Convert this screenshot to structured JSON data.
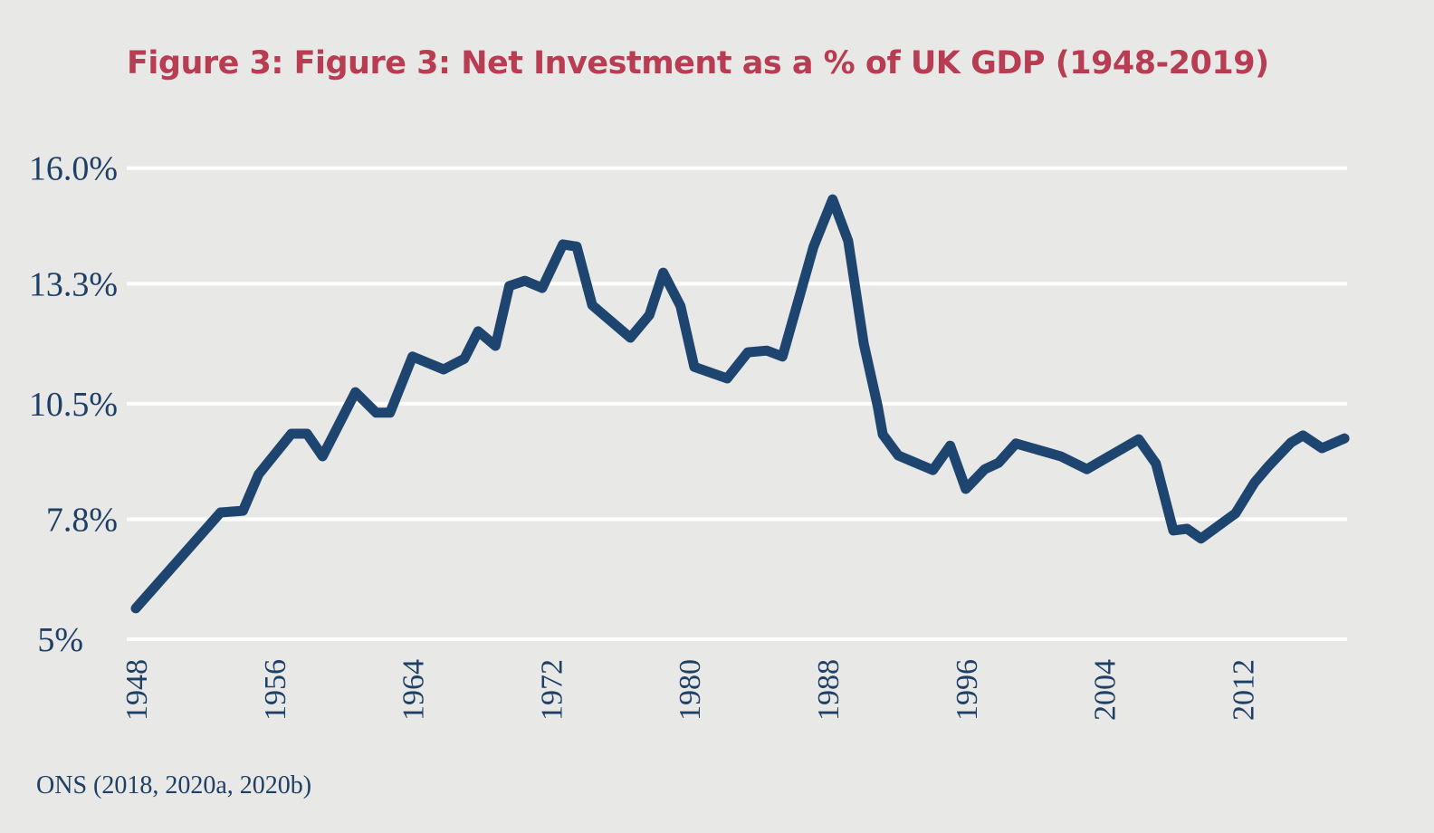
{
  "chart_data": {
    "type": "line",
    "title": "Figure 3: Figure 3: Net Investment as a % of UK GDP (1948-2019)",
    "xlabel": "",
    "ylabel": "",
    "ylim": [
      5,
      16.0
    ],
    "xlim": [
      1948,
      2018
    ],
    "grid": true,
    "y_ticks": [
      {
        "value": 16.0,
        "label": "16.0%"
      },
      {
        "value": 13.3,
        "label": "13.3%"
      },
      {
        "value": 10.5,
        "label": "10.5%"
      },
      {
        "value": 7.8,
        "label": "7.8%"
      },
      {
        "value": 5,
        "label": "5%"
      }
    ],
    "x_ticks": [
      {
        "value": 1948,
        "label": "1948"
      },
      {
        "value": 1956,
        "label": "1956"
      },
      {
        "value": 1964,
        "label": "1964"
      },
      {
        "value": 1972,
        "label": "1972"
      },
      {
        "value": 1980,
        "label": "1980"
      },
      {
        "value": 1988,
        "label": "1988"
      },
      {
        "value": 1996,
        "label": "1996"
      },
      {
        "value": 2004,
        "label": "2004"
      },
      {
        "value": 2012,
        "label": "2012"
      }
    ],
    "series": [
      {
        "name": "Net Investment % of GDP",
        "color": "#1e4470",
        "points": [
          [
            1948,
            5.72
          ],
          [
            1952.9,
            7.96
          ],
          [
            1954.2,
            8.0
          ],
          [
            1955.1,
            8.85
          ],
          [
            1957.0,
            9.8
          ],
          [
            1957.9,
            9.8
          ],
          [
            1958.8,
            9.27
          ],
          [
            1960.7,
            10.77
          ],
          [
            1961.9,
            10.29
          ],
          [
            1962.7,
            10.29
          ],
          [
            1964.0,
            11.6
          ],
          [
            1965.8,
            11.3
          ],
          [
            1967.0,
            11.55
          ],
          [
            1967.8,
            12.19
          ],
          [
            1968.8,
            11.85
          ],
          [
            1969.6,
            13.25
          ],
          [
            1970.5,
            13.37
          ],
          [
            1971.5,
            13.2
          ],
          [
            1972.7,
            14.22
          ],
          [
            1973.5,
            14.17
          ],
          [
            1974.4,
            12.8
          ],
          [
            1976.6,
            12.04
          ],
          [
            1977.7,
            12.57
          ],
          [
            1978.5,
            13.56
          ],
          [
            1979.5,
            12.78
          ],
          [
            1980.3,
            11.36
          ],
          [
            1982.2,
            11.09
          ],
          [
            1983.4,
            11.7
          ],
          [
            1984.5,
            11.74
          ],
          [
            1985.4,
            11.6
          ],
          [
            1987.2,
            14.17
          ],
          [
            1988.3,
            15.27
          ],
          [
            1989.2,
            14.3
          ],
          [
            1990.1,
            11.9
          ],
          [
            1990.9,
            10.45
          ],
          [
            1991.2,
            9.78
          ],
          [
            1992.1,
            9.29
          ],
          [
            1994.1,
            8.95
          ],
          [
            1995.1,
            9.52
          ],
          [
            1996.0,
            8.51
          ],
          [
            1997.1,
            8.97
          ],
          [
            1997.9,
            9.12
          ],
          [
            1998.9,
            9.57
          ],
          [
            2001.5,
            9.27
          ],
          [
            2003.0,
            8.97
          ],
          [
            2006.0,
            9.67
          ],
          [
            2007.0,
            9.1
          ],
          [
            2008.0,
            7.54
          ],
          [
            2008.8,
            7.58
          ],
          [
            2009.6,
            7.35
          ],
          [
            2011.6,
            7.94
          ],
          [
            2012.7,
            8.66
          ],
          [
            2013.5,
            9.04
          ],
          [
            2014.8,
            9.59
          ],
          [
            2015.5,
            9.76
          ],
          [
            2016.6,
            9.46
          ],
          [
            2017.9,
            9.69
          ]
        ]
      }
    ]
  },
  "source": "ONS (2018, 2020a, 2020b)"
}
